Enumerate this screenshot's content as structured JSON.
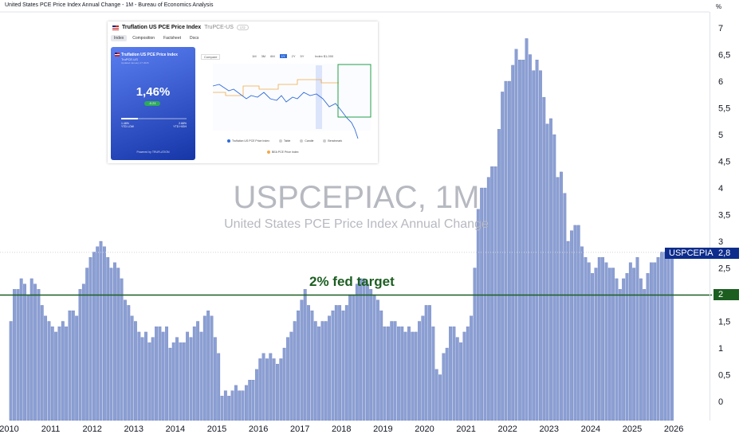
{
  "header": {
    "title": "United States PCE Price Index Annual Change - 1M - Bureau of Economics Analysis"
  },
  "watermark": {
    "symbol": "USPCEPIAC, 1M",
    "description": "United States PCE Price Index Annual Change"
  },
  "annotation": {
    "fed_target_label": "2% fed target"
  },
  "axis": {
    "unit": "%"
  },
  "price_tag": {
    "symbol": "USPCEPIAC",
    "value": "2,8",
    "fed_value": "2"
  },
  "colors": {
    "bar": "#8b9fd4",
    "bar_edge": "#6378b6",
    "target_line": "#1b5e20",
    "tag_bg": "#0d2c8c",
    "text": "#131722"
  },
  "inset": {
    "title": "Truflation US PCE Price Index",
    "ticker": "TruPCE-US",
    "badge": "172",
    "tabs": [
      "Index",
      "Composition",
      "Factsheet",
      "Docs"
    ],
    "card": {
      "title": "Truflation US PCE Price Index",
      "subtitle": "TruPCE-US",
      "updated": "Updated January 27 2026",
      "value": "1,46%",
      "change": "-0.21",
      "range_fraction": 0.25,
      "low_value": "1.46%",
      "low_label": "YTD LOW",
      "high_value": "2.68%",
      "high_label": "YTD HIGH",
      "footer": "Powered by TRUFLATION"
    },
    "compare": "Compare",
    "periods": [
      "1M",
      "3M",
      "6M",
      "1Y",
      "2Y",
      "5Y"
    ],
    "active_period": "1Y",
    "index_label": "Index",
    "index_value": "$1,000",
    "legend": [
      "Truflation US PCE Price Index",
      "Table",
      "Candle",
      "Benchmark"
    ],
    "legend2": "BEA PCE Price Index"
  },
  "chart_data": {
    "type": "bar",
    "title": "USPCEPIAC, 1M",
    "subtitle": "United States PCE Price Index Annual Change",
    "ylabel": "%",
    "ylim": [
      -0.5,
      7.4
    ],
    "y_ticks": [
      "0",
      "0,5",
      "1",
      "1,5",
      "2",
      "2,5",
      "3",
      "3,5",
      "4",
      "4,5",
      "5",
      "5,5",
      "6",
      "6,5",
      "7"
    ],
    "x_ticks": [
      "2010",
      "2011",
      "2012",
      "2013",
      "2014",
      "2015",
      "2016",
      "2017",
      "2018",
      "2019",
      "2020",
      "2021",
      "2022",
      "2023",
      "2024",
      "2025",
      "2026"
    ],
    "reference_line": {
      "value": 2,
      "label": "2% fed target"
    },
    "last_value": 2.8,
    "start": "2010-01",
    "frequency": "monthly",
    "values": [
      1.5,
      2.1,
      2.1,
      2.3,
      2.2,
      2.0,
      2.3,
      2.2,
      2.1,
      1.8,
      1.6,
      1.5,
      1.4,
      1.3,
      1.4,
      1.5,
      1.4,
      1.7,
      1.7,
      1.6,
      2.1,
      2.2,
      2.5,
      2.7,
      2.8,
      2.9,
      3.0,
      2.9,
      2.7,
      2.5,
      2.6,
      2.5,
      2.3,
      1.9,
      1.8,
      1.6,
      1.5,
      1.3,
      1.2,
      1.3,
      1.1,
      1.2,
      1.4,
      1.4,
      1.3,
      1.4,
      1.0,
      1.1,
      1.2,
      1.1,
      1.1,
      1.3,
      1.2,
      1.4,
      1.5,
      1.3,
      1.6,
      1.7,
      1.6,
      1.2,
      0.9,
      0.1,
      0.2,
      0.1,
      0.2,
      0.3,
      0.2,
      0.2,
      0.3,
      0.4,
      0.4,
      0.6,
      0.8,
      0.9,
      0.8,
      0.9,
      0.8,
      0.7,
      0.8,
      1.0,
      1.2,
      1.3,
      1.5,
      1.7,
      1.9,
      2.1,
      1.8,
      1.7,
      1.5,
      1.4,
      1.5,
      1.5,
      1.6,
      1.7,
      1.8,
      1.8,
      1.7,
      1.8,
      2.0,
      2.0,
      2.2,
      2.3,
      2.3,
      2.2,
      2.1,
      2.0,
      1.9,
      1.7,
      1.4,
      1.4,
      1.5,
      1.5,
      1.4,
      1.4,
      1.3,
      1.4,
      1.3,
      1.3,
      1.5,
      1.6,
      1.8,
      1.8,
      1.4,
      0.6,
      0.5,
      0.9,
      1.0,
      1.4,
      1.4,
      1.2,
      1.1,
      1.3,
      1.4,
      1.6,
      2.5,
      3.6,
      4.0,
      4.0,
      4.2,
      4.4,
      4.4,
      5.1,
      5.8,
      6.0,
      6.0,
      6.3,
      6.6,
      6.4,
      6.4,
      6.8,
      6.5,
      6.2,
      6.4,
      6.2,
      5.7,
      5.2,
      5.3,
      5.0,
      4.2,
      4.3,
      3.9,
      3.0,
      3.2,
      3.3,
      3.3,
      2.9,
      2.7,
      2.6,
      2.4,
      2.5,
      2.7,
      2.7,
      2.6,
      2.5,
      2.5,
      2.3,
      2.1,
      2.3,
      2.4,
      2.6,
      2.5,
      2.7,
      2.3,
      2.1,
      2.4,
      2.6,
      2.6,
      2.7,
      2.8,
      2.8,
      2.8,
      2.8
    ]
  }
}
